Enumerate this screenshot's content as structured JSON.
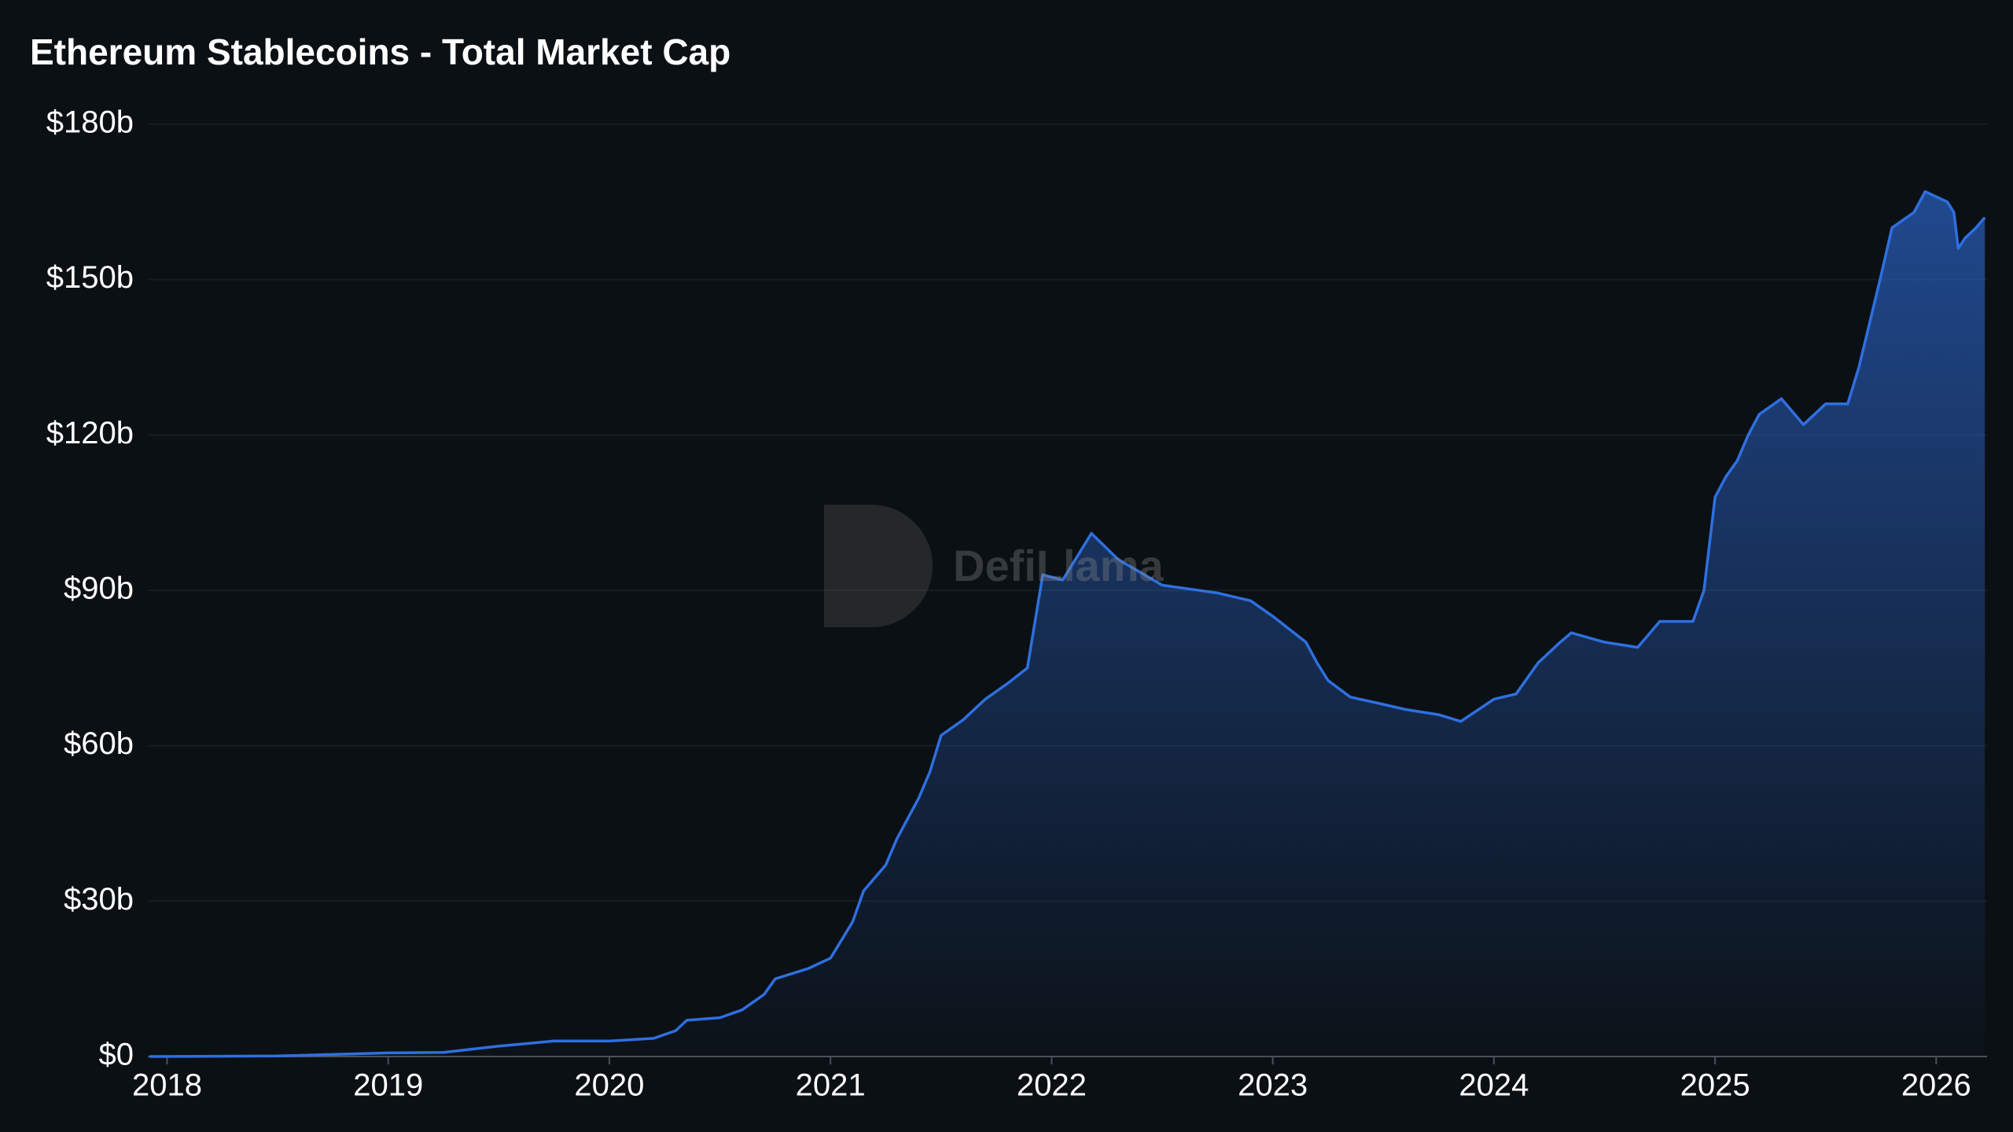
{
  "chart_data": {
    "type": "area",
    "title": "Ethereum Stablecoins - Total Market Cap",
    "watermark": "DefiLlama",
    "color": "#2f6fe0",
    "grid": true,
    "xlim": [
      2017.913,
      2026.23
    ],
    "xticks": [
      2018,
      2019,
      2020,
      2021,
      2022,
      2023,
      2024,
      2025,
      2026
    ],
    "ylim": [
      0,
      180
    ],
    "yticks": [
      {
        "value": 0,
        "label": "$0"
      },
      {
        "value": 30,
        "label": "$30b"
      },
      {
        "value": 60,
        "label": "$60b"
      },
      {
        "value": 90,
        "label": "$90b"
      },
      {
        "value": 120,
        "label": "$120b"
      },
      {
        "value": 150,
        "label": "$150b"
      },
      {
        "value": 180,
        "label": "$180b"
      }
    ],
    "x": [
      2017.92,
      2018.5,
      2019.0,
      2019.25,
      2019.5,
      2019.75,
      2020.0,
      2020.2,
      2020.3,
      2020.35,
      2020.5,
      2020.6,
      2020.7,
      2020.75,
      2020.9,
      2021.0,
      2021.1,
      2021.15,
      2021.25,
      2021.3,
      2021.4,
      2021.45,
      2021.5,
      2021.6,
      2021.7,
      2021.8,
      2021.89,
      2021.96,
      2022.05,
      2022.18,
      2022.3,
      2022.5,
      2022.75,
      2022.9,
      2023.0,
      2023.15,
      2023.2,
      2023.25,
      2023.35,
      2023.5,
      2023.6,
      2023.75,
      2023.85,
      2024.0,
      2024.1,
      2024.2,
      2024.3,
      2024.35,
      2024.5,
      2024.65,
      2024.75,
      2024.9,
      2024.95,
      2025.0,
      2025.05,
      2025.1,
      2025.15,
      2025.2,
      2025.3,
      2025.4,
      2025.5,
      2025.6,
      2025.65,
      2025.69,
      2025.75,
      2025.8,
      2025.9,
      2025.95,
      2026.0,
      2026.05,
      2026.08,
      2026.1,
      2026.13,
      2026.18,
      2026.22
    ],
    "values": [
      0,
      0.1,
      0.7,
      0.8,
      2,
      3,
      3,
      3.5,
      5,
      7,
      7.5,
      9,
      12,
      15,
      17,
      19,
      26,
      32,
      37,
      42,
      50,
      55,
      62,
      65,
      69,
      72,
      75,
      93,
      92,
      101,
      96,
      91,
      89.5,
      88,
      85,
      80,
      76,
      72.6,
      69.4,
      68,
      67,
      66,
      64.7,
      69,
      70,
      76,
      80,
      81.8,
      80,
      79,
      84,
      84,
      90,
      108,
      112,
      115,
      120,
      124,
      127,
      122,
      126,
      126,
      133,
      140,
      150.7,
      160,
      163,
      167,
      166,
      165,
      163,
      156,
      158,
      160,
      162
    ]
  }
}
